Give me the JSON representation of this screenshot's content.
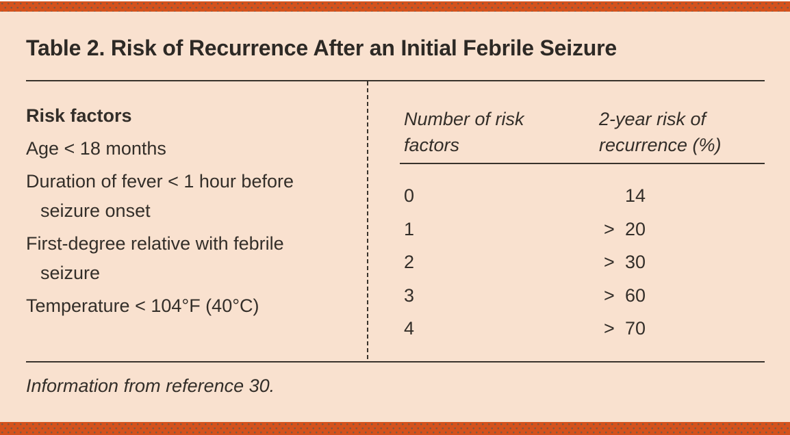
{
  "page": {
    "title": "Table 2. Risk of Recurrence After an Initial Febrile Seizure",
    "footnote": "Information from reference 30.",
    "colors": {
      "accent_bar": "#d4521d",
      "panel_background": "#f9e1cf",
      "ink": "#332e29"
    }
  },
  "risk_factors": {
    "heading": "Risk factors",
    "items": [
      {
        "line1": "Age < 18 months",
        "line2": ""
      },
      {
        "line1": "Duration of fever < 1 hour before",
        "line2": "seizure onset"
      },
      {
        "line1": "First-degree relative with febrile",
        "line2": "seizure"
      },
      {
        "line1": "Temperature < 104°F (40°C)",
        "line2": ""
      }
    ]
  },
  "recurrence_table": {
    "header_col1": [
      "Number of risk",
      "factors"
    ],
    "header_col2": [
      "2-year risk of",
      "recurrence (%)"
    ],
    "rows": [
      {
        "factors": "0",
        "op": "",
        "value": "14"
      },
      {
        "factors": "1",
        "op": ">",
        "value": "20"
      },
      {
        "factors": "2",
        "op": ">",
        "value": "30"
      },
      {
        "factors": "3",
        "op": ">",
        "value": "60"
      },
      {
        "factors": "4",
        "op": ">",
        "value": "70"
      }
    ]
  },
  "chart_data": {
    "type": "table",
    "title": "Table 2. Risk of Recurrence After an Initial Febrile Seizure",
    "columns": [
      "Number of risk factors",
      "2-year risk of recurrence (%)"
    ],
    "rows": [
      [
        "0",
        "14"
      ],
      [
        "1",
        "> 20"
      ],
      [
        "2",
        "> 30"
      ],
      [
        "3",
        "> 60"
      ],
      [
        "4",
        "> 70"
      ]
    ],
    "risk_factors_list": [
      "Age < 18 months",
      "Duration of fever < 1 hour before seizure onset",
      "First-degree relative with febrile seizure",
      "Temperature < 104°F (40°C)"
    ],
    "footnote": "Information from reference 30."
  }
}
